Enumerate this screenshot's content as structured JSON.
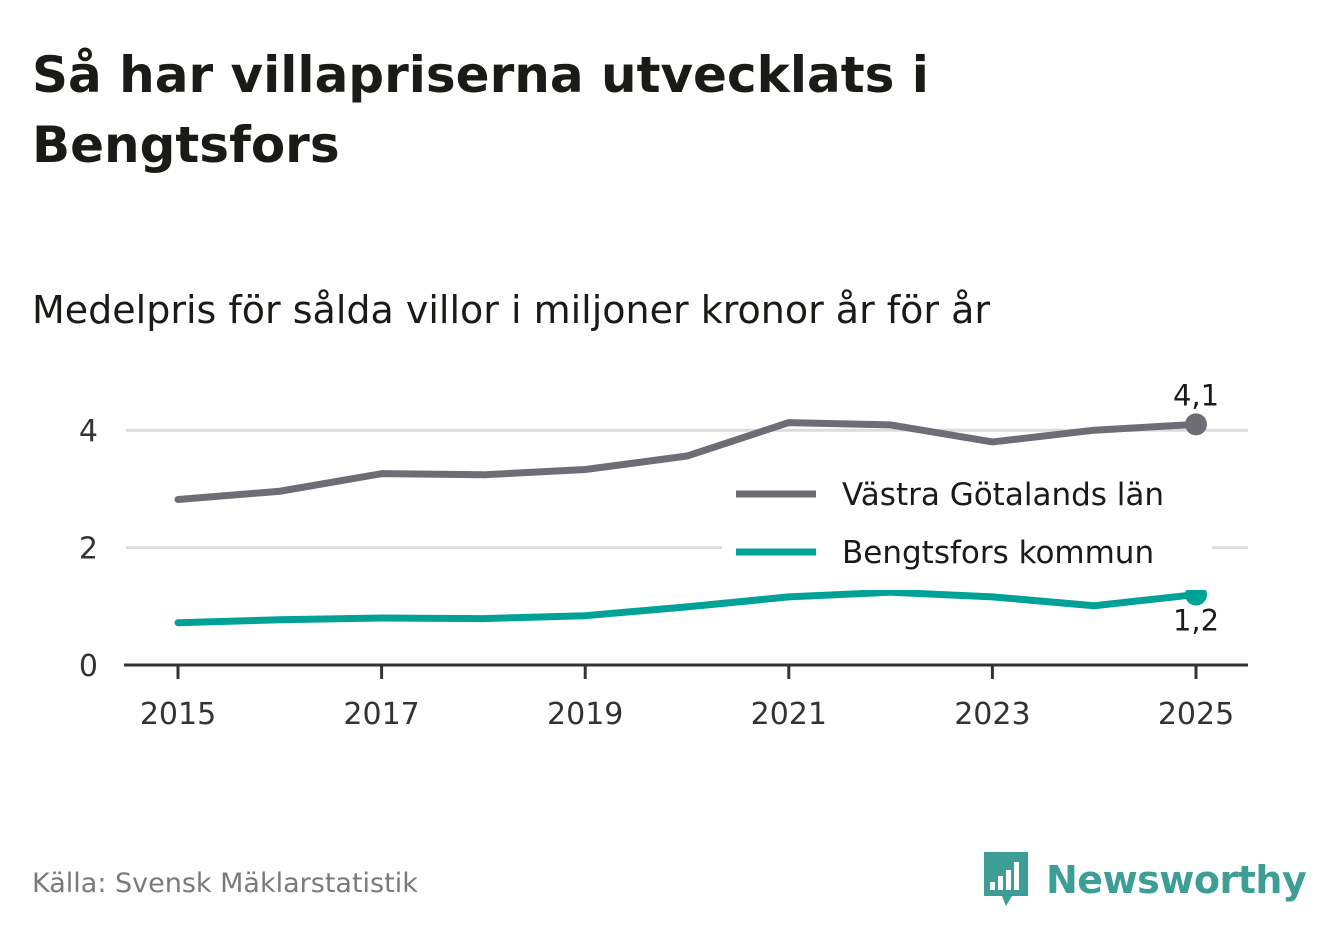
{
  "header": {
    "title": "Så har villapriserna utvecklats i Bengtsfors",
    "subtitle": "Medelpris för sålda villor i miljoner kronor år för år"
  },
  "footer": {
    "source": "Källa: Svensk Mäklarstatistik",
    "brand": "Newsworthy"
  },
  "colors": {
    "series_vastra": "#6e6d75",
    "series_bengtsfors": "#00a196",
    "grid": "#dcdcdc",
    "axis": "#333333",
    "brand": "#3d9e95"
  },
  "chart_data": {
    "type": "line",
    "title": "Så har villapriserna utvecklats i Bengtsfors",
    "subtitle": "Medelpris för sålda villor i miljoner kronor år för år",
    "xlabel": "",
    "ylabel": "",
    "x": [
      2015,
      2016,
      2017,
      2018,
      2019,
      2020,
      2021,
      2022,
      2023,
      2024,
      2025
    ],
    "x_ticks": [
      "2015",
      "2017",
      "2019",
      "2021",
      "2023",
      "2025"
    ],
    "y_ticks": [
      "0",
      "2",
      "4"
    ],
    "ylim": [
      0,
      4.5
    ],
    "xlim": [
      2014.5,
      2025.5
    ],
    "grid": true,
    "legend_position": "right",
    "series": [
      {
        "name": "Västra Götalands län",
        "values": [
          2.82,
          2.96,
          3.26,
          3.24,
          3.33,
          3.56,
          4.13,
          4.09,
          3.8,
          4.0,
          4.1
        ],
        "end_label": "4,1"
      },
      {
        "name": "Bengtsfors kommun",
        "values": [
          0.72,
          0.77,
          0.8,
          0.79,
          0.84,
          0.99,
          1.16,
          1.24,
          1.16,
          1.01,
          1.2
        ],
        "end_label": "1,2"
      }
    ]
  }
}
